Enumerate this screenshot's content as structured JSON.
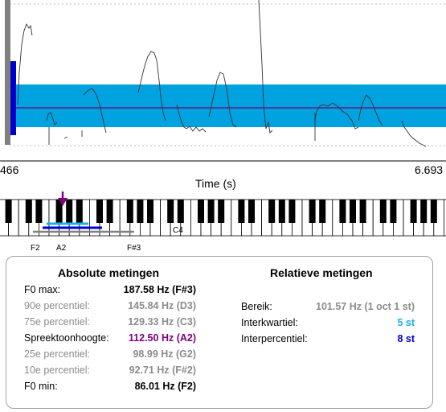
{
  "colors": {
    "band": "#00a2e0",
    "median_line": "#7a0074",
    "marker_bar": "#0000cc",
    "grey_bar": "#808080",
    "accent_purple": "#800080",
    "light_blue": "#1ab0e8",
    "dark_blue": "#0000cc"
  },
  "plot": {
    "time_start": "466",
    "time_end": "6.693",
    "xlabel": "Time (s)"
  },
  "keyboard": {
    "labels": [
      "F2",
      "A2",
      "F#3",
      "C4"
    ],
    "marker": "arrow-down-icon"
  },
  "absolute": {
    "title": "Absolute metingen",
    "rows": [
      {
        "label": "F0 max:",
        "value": "187.58 Hz (F#3)"
      },
      {
        "label": "90e percentiel:",
        "value": "145.84 Hz (D3)"
      },
      {
        "label": "75e percentiel:",
        "value": "129.33 Hz (C3)"
      },
      {
        "label": "Spreektoonhoogte:",
        "value": "112.50 Hz (A2)"
      },
      {
        "label": "25e percentiel:",
        "value": "98.99 Hz (G2)"
      },
      {
        "label": "10e percentiel:",
        "value": "92.71 Hz (F#2)"
      },
      {
        "label": "F0 min:",
        "value": "86.01 Hz (F2)"
      }
    ]
  },
  "relative": {
    "title": "Relatieve metingen",
    "rows": [
      {
        "label": "Bereik:",
        "value": "101.57 Hz (1 oct 1 st)"
      },
      {
        "label": "Interkwartiel:",
        "value": "5 st"
      },
      {
        "label": "Interpercentiel:",
        "value": "8 st"
      }
    ]
  }
}
